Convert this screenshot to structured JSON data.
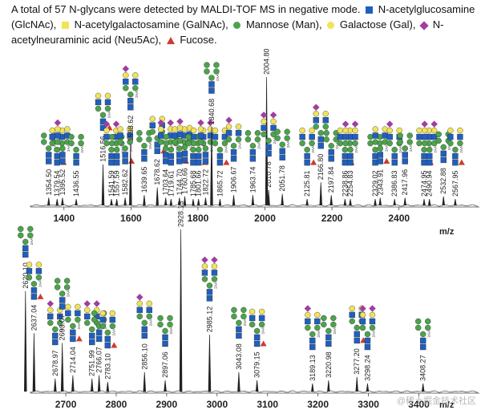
{
  "header": {
    "line": [
      {
        "text": "A total of 57 N-glycans were detected by MALDI-TOF MS in negative mode. "
      },
      {
        "shape": "square",
        "color": "#1f5fbf",
        "icon": "glcnac-square-icon"
      },
      {
        "text": " N-acetylglucosamine (GlcNAc), "
      },
      {
        "shape": "square",
        "color": "#f1e35a",
        "icon": "galnac-square-icon"
      },
      {
        "text": " N-acetylgalactosamine (GalNAc), "
      },
      {
        "shape": "circle",
        "color": "#4ba34b",
        "icon": "mannose-circle-icon"
      },
      {
        "text": " Mannose (Man), "
      },
      {
        "shape": "circle",
        "color": "#f1e35a",
        "icon": "galactose-circle-icon"
      },
      {
        "text": " Galactose (Gal), "
      },
      {
        "shape": "diamond",
        "color": "#a03ea0",
        "icon": "neu5ac-diamond-icon"
      },
      {
        "text": " N-acetylneuraminic acid (Neu5Ac), "
      },
      {
        "shape": "triangle",
        "color": "#d03a2e",
        "icon": "fucose-triangle-icon"
      },
      {
        "text": " Fucose."
      }
    ]
  },
  "watermark": "@稀土掘金技术社区",
  "colors": {
    "glcnac": "#1f5fbf",
    "man": "#4ba34b",
    "gal": "#f1e35a",
    "neu5ac": "#a03ea0",
    "fuc": "#d03a2e",
    "spectrum": "#222222"
  },
  "chart_data": [
    {
      "type": "spectrum",
      "xlabel": "m/z",
      "xlim": [
        1300,
        2640
      ],
      "xticks": [
        1400,
        1600,
        1800,
        2000,
        2200,
        2400
      ],
      "peaks": [
        {
          "mz": 1354.5,
          "label": "1354.50",
          "rel": 0.06
        },
        {
          "mz": 1379.54,
          "label": "1379.54",
          "rel": 0.05
        },
        {
          "mz": 1395.52,
          "label": "1395.52",
          "rel": 0.06
        },
        {
          "mz": 1436.55,
          "label": "1436.55",
          "rel": 0.05
        },
        {
          "mz": 1516.56,
          "label": "1516.56",
          "rel": 0.32
        },
        {
          "mz": 1541.59,
          "label": "1541.59",
          "rel": 0.05
        },
        {
          "mz": 1557.59,
          "label": "1557.59",
          "rel": 0.05
        },
        {
          "mz": 1582.62,
          "label": "1582.62",
          "rel": 0.06
        },
        {
          "mz": 1598.62,
          "label": "1598.62",
          "rel": 0.48
        },
        {
          "mz": 1639.65,
          "label": "1639.65",
          "rel": 0.08
        },
        {
          "mz": 1678.62,
          "label": "1678.62",
          "rel": 0.14
        },
        {
          "mz": 1703.64,
          "label": "1703.64",
          "rel": 0.06
        },
        {
          "mz": 1719.61,
          "label": "1719.61",
          "rel": 0.05
        },
        {
          "mz": 1744.7,
          "label": "1744.70",
          "rel": 0.06
        },
        {
          "mz": 1760.66,
          "label": "1760.66",
          "rel": 0.07
        },
        {
          "mz": 1785.68,
          "label": "1785.68",
          "rel": 0.05
        },
        {
          "mz": 1801.66,
          "label": "1801.66",
          "rel": 0.05
        },
        {
          "mz": 1822.72,
          "label": "1822.72",
          "rel": 0.06
        },
        {
          "mz": 1840.68,
          "label": "1840.68",
          "rel": 0.61
        },
        {
          "mz": 1865.72,
          "label": "1865.72",
          "rel": 0.05
        },
        {
          "mz": 1906.67,
          "label": "1906.67",
          "rel": 0.08
        },
        {
          "mz": 1963.74,
          "label": "1963.74",
          "rel": 0.08
        },
        {
          "mz": 2004.8,
          "label": "2004.80",
          "rel": 1.0
        },
        {
          "mz": 2010.78,
          "label": "2010.78",
          "rel": 0.12
        },
        {
          "mz": 2051.78,
          "label": "2051.78",
          "rel": 0.09
        },
        {
          "mz": 2125.81,
          "label": "2125.81",
          "rel": 0.05
        },
        {
          "mz": 2166.8,
          "label": "2166.80",
          "rel": 0.18
        },
        {
          "mz": 2197.84,
          "label": "2197.84",
          "rel": 0.08
        },
        {
          "mz": 2238.86,
          "label": "2238.86",
          "rel": 0.05
        },
        {
          "mz": 2254.83,
          "label": "2254.83",
          "rel": 0.05
        },
        {
          "mz": 2329.02,
          "label": "2329.02",
          "rel": 0.05
        },
        {
          "mz": 2343.91,
          "label": "2343.91",
          "rel": 0.06
        },
        {
          "mz": 2386.83,
          "label": "2386.83",
          "rel": 0.05
        },
        {
          "mz": 2417.96,
          "label": "2417.96",
          "rel": 0.06
        },
        {
          "mz": 2474.95,
          "label": "2474.95",
          "rel": 0.05
        },
        {
          "mz": 2490.94,
          "label": "2490.94",
          "rel": 0.05
        },
        {
          "mz": 2532.88,
          "label": "2532.88",
          "rel": 0.07
        },
        {
          "mz": 2567.95,
          "label": "2567.95",
          "rel": 0.05
        }
      ]
    },
    {
      "type": "spectrum",
      "xlabel": "m/z",
      "xlim": [
        2630,
        3520
      ],
      "xticks": [
        2700,
        2800,
        2900,
        3000,
        3100,
        3200,
        3300,
        3400
      ],
      "peaks": [
        {
          "mz": 2620.1,
          "label": "2620.10",
          "rel": 0.62
        },
        {
          "mz": 2637.04,
          "label": "2637.04",
          "rel": 0.36
        },
        {
          "mz": 2678.97,
          "label": "2678.97",
          "rel": 0.08
        },
        {
          "mz": 2693.07,
          "label": "2693.07",
          "rel": 0.3
        },
        {
          "mz": 2714.04,
          "label": "2714.04",
          "rel": 0.1
        },
        {
          "mz": 2751.99,
          "label": "2751.99",
          "rel": 0.08
        },
        {
          "mz": 2766.07,
          "label": "2766.07",
          "rel": 0.1
        },
        {
          "mz": 2783.1,
          "label": "2783.10",
          "rel": 0.06
        },
        {
          "mz": 2856.1,
          "label": "2856.10",
          "rel": 0.12
        },
        {
          "mz": 2897.06,
          "label": "2897.06",
          "rel": 0.07
        },
        {
          "mz": 2928.13,
          "label": "2928.13",
          "rel": 1.0
        },
        {
          "mz": 2985.12,
          "label": "2985.12",
          "rel": 0.35
        },
        {
          "mz": 3043.08,
          "label": "3043.08",
          "rel": 0.12
        },
        {
          "mz": 3079.15,
          "label": "3079.15",
          "rel": 0.07
        },
        {
          "mz": 3189.13,
          "label": "3189.13",
          "rel": 0.05
        },
        {
          "mz": 3220.98,
          "label": "3220.98",
          "rel": 0.07
        },
        {
          "mz": 3277.2,
          "label": "3277.20",
          "rel": 0.09
        },
        {
          "mz": 3298.24,
          "label": "3298.24",
          "rel": 0.05
        },
        {
          "mz": 3408.27,
          "label": "3408.27",
          "rel": 0.05
        }
      ]
    }
  ]
}
